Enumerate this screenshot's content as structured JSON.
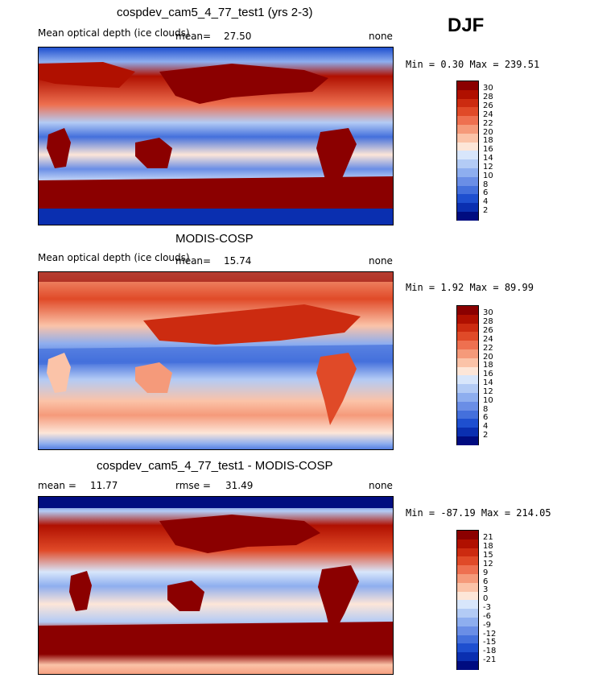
{
  "season": "DJF",
  "panels": [
    {
      "title": "cospdev_cam5_4_77_test1 (yrs 2-3)",
      "subtitle_left": "Mean optical depth (ice clouds)",
      "stat_label": "mean=",
      "stat_value": "27.50",
      "right_label": "none",
      "range_text": "Min =    0.30 Max = 239.51",
      "colorbar_labels": [
        "30",
        "28",
        "26",
        "24",
        "22",
        "20",
        "18",
        "16",
        "14",
        "12",
        "10",
        "8",
        "6",
        "4",
        "2"
      ],
      "colorbar_colors": [
        "#8b0000",
        "#b01000",
        "#cc2b10",
        "#e04a28",
        "#ee7050",
        "#f59a7a",
        "#fbc3a8",
        "#fde6d8",
        "#d8e6fb",
        "#b3cbf5",
        "#8eaeef",
        "#6a8ee6",
        "#4470dc",
        "#1e4fcf",
        "#0a2fb0",
        "#000c80"
      ]
    },
    {
      "title": "MODIS-COSP",
      "subtitle_left": "Mean optical depth (ice clouds)",
      "stat_label": "mean=",
      "stat_value": "15.74",
      "right_label": "none",
      "range_text": "Min =    1.92 Max =  89.99",
      "colorbar_labels": [
        "30",
        "28",
        "26",
        "24",
        "22",
        "20",
        "18",
        "16",
        "14",
        "12",
        "10",
        "8",
        "6",
        "4",
        "2"
      ],
      "colorbar_colors": [
        "#8b0000",
        "#b01000",
        "#cc2b10",
        "#e04a28",
        "#ee7050",
        "#f59a7a",
        "#fbc3a8",
        "#fde6d8",
        "#d8e6fb",
        "#b3cbf5",
        "#8eaeef",
        "#6a8ee6",
        "#4470dc",
        "#1e4fcf",
        "#0a2fb0",
        "#000c80"
      ]
    },
    {
      "title": "cospdev_cam5_4_77_test1 - MODIS-COSP",
      "mean_label": "mean =",
      "mean_value": "11.77",
      "rmse_label": "rmse =",
      "rmse_value": "31.49",
      "right_label": "none",
      "range_text": "Min = -87.19 Max = 214.05",
      "colorbar_labels": [
        "21",
        "18",
        "15",
        "12",
        "9",
        "6",
        "3",
        "0",
        "-3",
        "-6",
        "-9",
        "-12",
        "-15",
        "-18",
        "-21"
      ],
      "colorbar_colors": [
        "#8b0000",
        "#b01000",
        "#cc2b10",
        "#e04a28",
        "#ee7050",
        "#f59a7a",
        "#fbc3a8",
        "#fde6d8",
        "#d8e6fb",
        "#b3cbf5",
        "#8eaeef",
        "#6a8ee6",
        "#4470dc",
        "#1e4fcf",
        "#0a2fb0",
        "#000c80"
      ]
    }
  ]
}
